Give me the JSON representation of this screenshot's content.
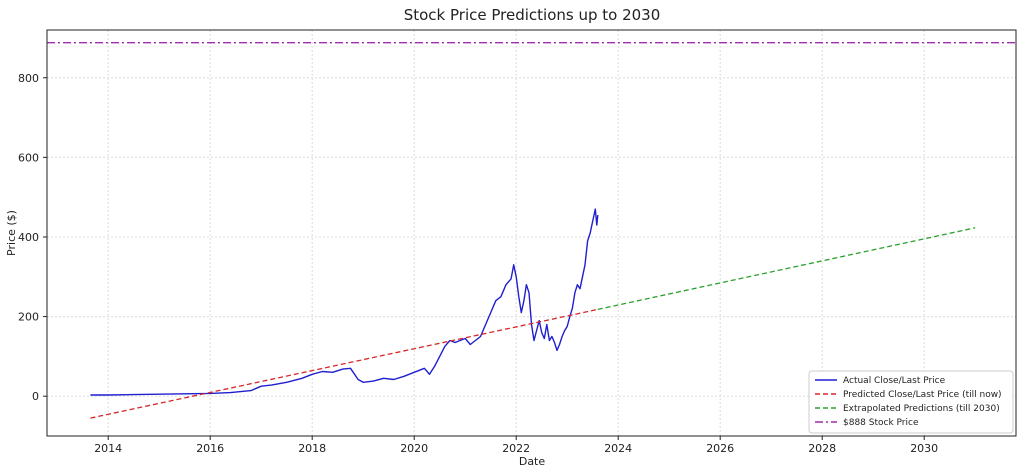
{
  "chart_data": {
    "type": "line",
    "title": "Stock Price Predictions up to 2030",
    "xlabel": "Date",
    "ylabel": "Price ($)",
    "xlim": [
      2012.8,
      2031.8
    ],
    "ylim": [
      -100,
      920
    ],
    "x_ticks": [
      2014,
      2016,
      2018,
      2020,
      2022,
      2024,
      2026,
      2028,
      2030
    ],
    "x_tick_labels": [
      "2014",
      "2016",
      "2018",
      "2020",
      "2022",
      "2024",
      "2026",
      "2028",
      "2030"
    ],
    "y_ticks": [
      0,
      200,
      400,
      600,
      800
    ],
    "y_tick_labels": [
      "0",
      "200",
      "400",
      "600",
      "800"
    ],
    "grid": true,
    "legend_position": "bottom-right",
    "series": [
      {
        "name": "Actual Close/Last Price",
        "color": "#1f1fd0",
        "style": "solid",
        "x": [
          2013.65,
          2014.0,
          2014.5,
          2015.0,
          2015.5,
          2016.0,
          2016.4,
          2016.8,
          2017.0,
          2017.2,
          2017.5,
          2017.8,
          2018.0,
          2018.2,
          2018.4,
          2018.6,
          2018.75,
          2018.9,
          2019.0,
          2019.2,
          2019.4,
          2019.6,
          2019.8,
          2020.0,
          2020.2,
          2020.3,
          2020.4,
          2020.5,
          2020.6,
          2020.7,
          2020.8,
          2021.0,
          2021.1,
          2021.3,
          2021.5,
          2021.6,
          2021.7,
          2021.8,
          2021.9,
          2021.95,
          2022.0,
          2022.05,
          2022.1,
          2022.15,
          2022.2,
          2022.25,
          2022.3,
          2022.35,
          2022.4,
          2022.45,
          2022.5,
          2022.55,
          2022.6,
          2022.65,
          2022.7,
          2022.75,
          2022.8,
          2022.85,
          2022.9,
          2022.95,
          2023.0,
          2023.05,
          2023.1,
          2023.15,
          2023.2,
          2023.25,
          2023.3,
          2023.35,
          2023.4,
          2023.45,
          2023.5,
          2023.55,
          2023.58,
          2023.6
        ],
        "values": [
          3,
          3,
          4,
          5,
          6,
          7,
          9,
          14,
          25,
          28,
          35,
          45,
          55,
          62,
          60,
          68,
          70,
          42,
          35,
          38,
          45,
          42,
          50,
          60,
          70,
          55,
          75,
          100,
          125,
          140,
          135,
          145,
          130,
          150,
          210,
          240,
          250,
          280,
          295,
          330,
          300,
          250,
          210,
          240,
          280,
          260,
          180,
          140,
          165,
          190,
          160,
          145,
          180,
          140,
          150,
          135,
          115,
          130,
          150,
          165,
          175,
          200,
          220,
          260,
          280,
          270,
          300,
          330,
          390,
          410,
          440,
          470,
          430,
          455
        ]
      },
      {
        "name": "Predicted Close/Last Price (till now)",
        "color": "#d62728",
        "style": "dashed",
        "x": [
          2013.65,
          2023.6
        ],
        "values": [
          -55,
          218
        ]
      },
      {
        "name": "Extrapolated Predictions (till 2030)",
        "color": "#2ca02c",
        "style": "dashed",
        "x": [
          2023.6,
          2031.0
        ],
        "values": [
          218,
          423
        ]
      },
      {
        "name": "$888 Stock Price",
        "color": "#9b30a8",
        "style": "dashdot",
        "x": [
          2012.8,
          2031.8
        ],
        "values": [
          888,
          888
        ]
      }
    ]
  }
}
